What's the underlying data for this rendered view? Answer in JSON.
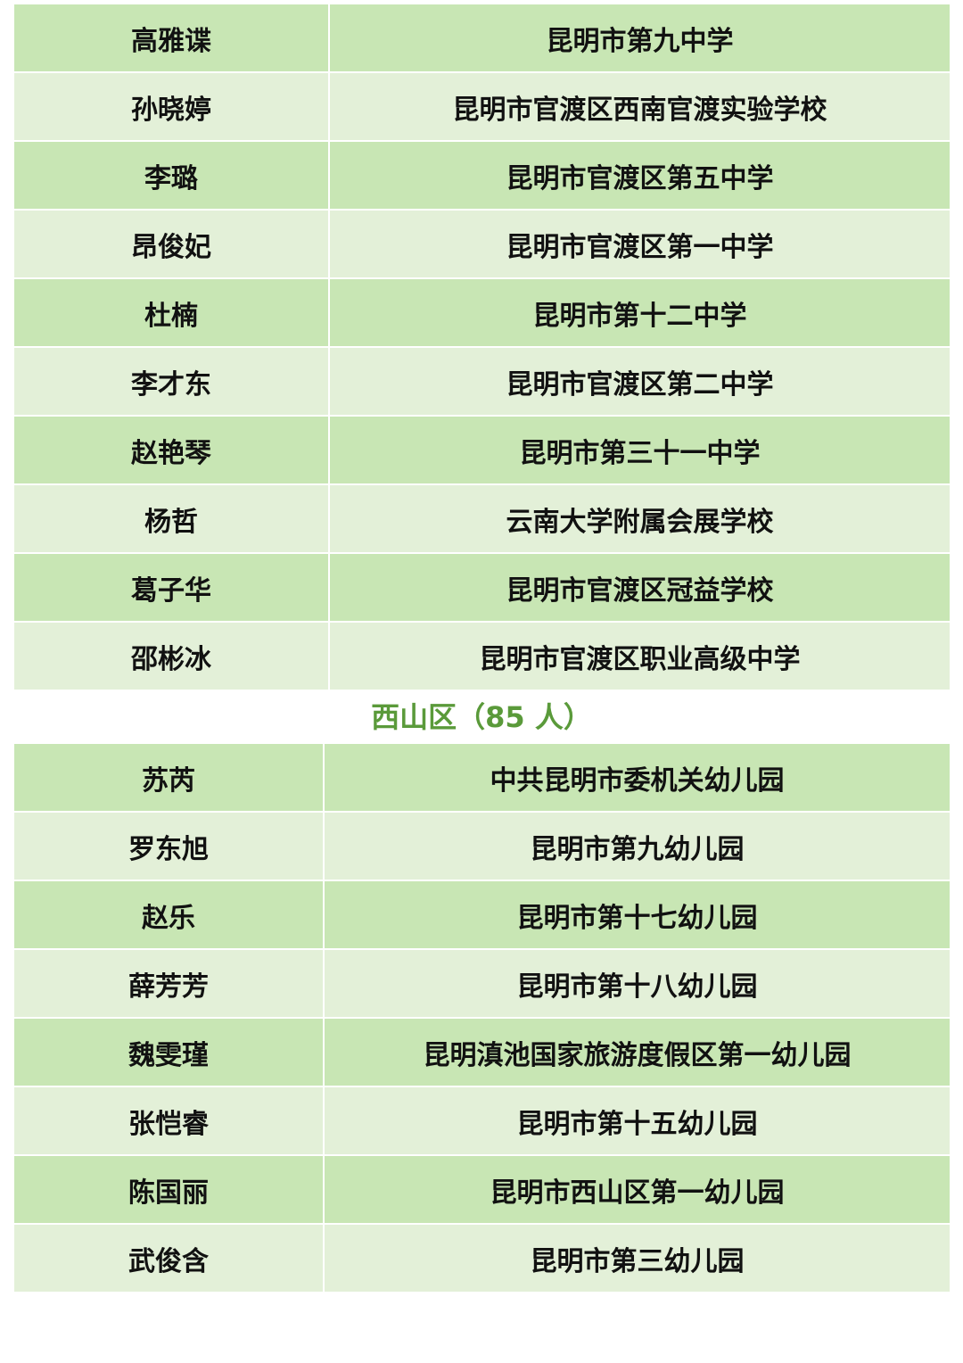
{
  "colors": {
    "row_dark": "#c8e6b4",
    "row_light": "#e3f0d8",
    "heading": "#5a9a3a"
  },
  "table1": {
    "rows": [
      {
        "name": "高雅谍",
        "school": "昆明市第九中学"
      },
      {
        "name": "孙晓婷",
        "school": "昆明市官渡区西南官渡实验学校"
      },
      {
        "name": "李璐",
        "school": "昆明市官渡区第五中学"
      },
      {
        "name": "昂俊妃",
        "school": "昆明市官渡区第一中学"
      },
      {
        "name": "杜楠",
        "school": "昆明市第十二中学"
      },
      {
        "name": "李才东",
        "school": "昆明市官渡区第二中学"
      },
      {
        "name": "赵艳琴",
        "school": "昆明市第三十一中学"
      },
      {
        "name": "杨哲",
        "school": "云南大学附属会展学校"
      },
      {
        "name": "葛子华",
        "school": "昆明市官渡区冠益学校"
      },
      {
        "name": "邵彬冰",
        "school": "昆明市官渡区职业高级中学"
      }
    ]
  },
  "section_heading": "西山区（85 人）",
  "table2": {
    "rows": [
      {
        "name": "苏芮",
        "school": "中共昆明市委机关幼儿园"
      },
      {
        "name": "罗东旭",
        "school": "昆明市第九幼儿园"
      },
      {
        "name": "赵乐",
        "school": "昆明市第十七幼儿园"
      },
      {
        "name": "薛芳芳",
        "school": "昆明市第十八幼儿园"
      },
      {
        "name": "魏雯瑾",
        "school": "昆明滇池国家旅游度假区第一幼儿园"
      },
      {
        "name": "张恺睿",
        "school": "昆明市第十五幼儿园"
      },
      {
        "name": "陈国丽",
        "school": "昆明市西山区第一幼儿园"
      },
      {
        "name": "武俊含",
        "school": "昆明市第三幼儿园"
      }
    ]
  }
}
